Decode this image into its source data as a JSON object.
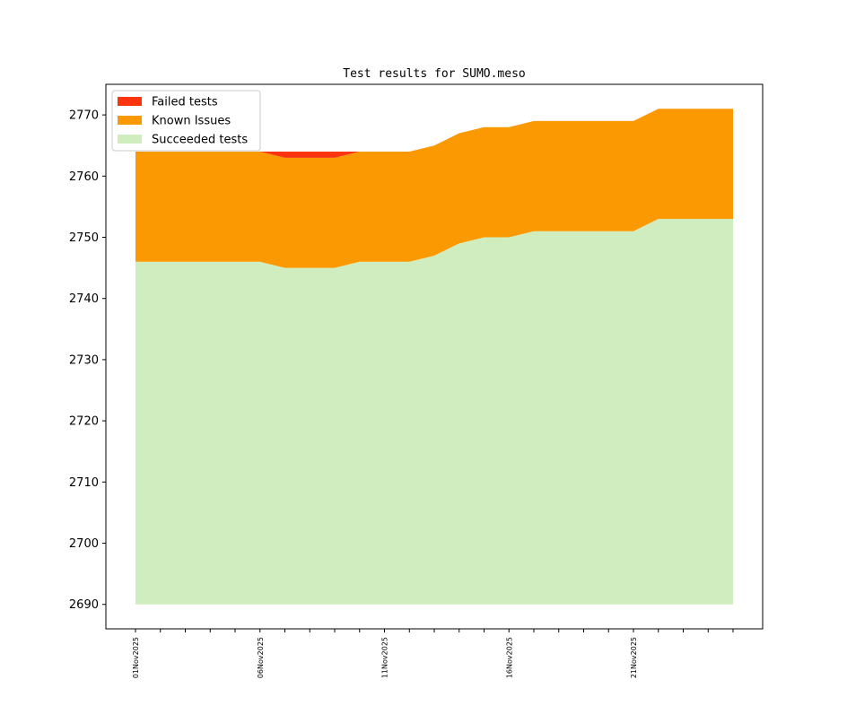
{
  "chart_data": {
    "type": "area",
    "stacked": true,
    "title": "Test results for SUMO.meso",
    "xlabel": "",
    "ylabel": "",
    "ylim": [
      2686,
      2775
    ],
    "yticks": [
      2690,
      2700,
      2710,
      2720,
      2730,
      2740,
      2750,
      2760,
      2770
    ],
    "baseline": 2690,
    "x_dates": [
      "01Nov2025",
      "02Nov2025",
      "03Nov2025",
      "04Nov2025",
      "05Nov2025",
      "06Nov2025",
      "07Nov2025",
      "08Nov2025",
      "09Nov2025",
      "10Nov2025",
      "11Nov2025",
      "12Nov2025",
      "13Nov2025",
      "14Nov2025",
      "15Nov2025",
      "16Nov2025",
      "17Nov2025",
      "18Nov2025",
      "19Nov2025",
      "20Nov2025",
      "21Nov2025",
      "22Nov2025",
      "23Nov2025",
      "24Nov2025",
      "25Nov2025"
    ],
    "xtick_labels": [
      "01Nov2025",
      "06Nov2025",
      "11Nov2025",
      "16Nov2025",
      "21Nov2025"
    ],
    "legend_position": "upper-left",
    "series": [
      {
        "name": "Succeeded tests",
        "color": "#cfedbf",
        "cumulative_top": [
          2746,
          2746,
          2746,
          2746,
          2746,
          2746,
          2745,
          2745,
          2745,
          2746,
          2746,
          2746,
          2747,
          2749,
          2750,
          2750,
          2751,
          2751,
          2751,
          2751,
          2751,
          2753,
          2753,
          2753,
          2753
        ]
      },
      {
        "name": "Known Issues",
        "color": "#fb9902",
        "cumulative_top": [
          2764,
          2764,
          2764,
          2764,
          2764,
          2764,
          2763,
          2763,
          2763,
          2764,
          2764,
          2764,
          2765,
          2767,
          2768,
          2768,
          2769,
          2769,
          2769,
          2769,
          2769,
          2771,
          2771,
          2771,
          2771
        ]
      },
      {
        "name": "Failed tests",
        "color": "#fd3410",
        "cumulative_top": [
          2764,
          2764,
          2764,
          2764,
          2764,
          2764,
          2764,
          2764,
          2764,
          2764,
          2764,
          2764,
          2765,
          2767,
          2768,
          2768,
          2769,
          2769,
          2769,
          2769,
          2769,
          2771,
          2771,
          2771,
          2771
        ]
      }
    ]
  }
}
